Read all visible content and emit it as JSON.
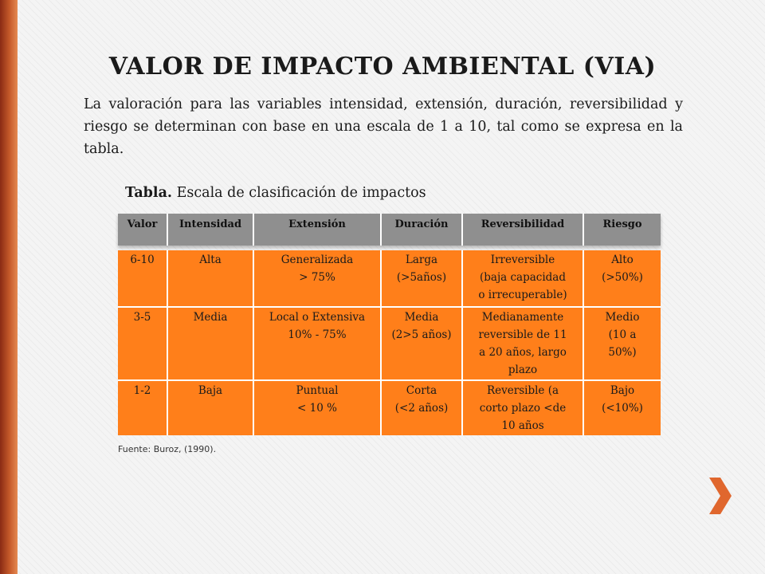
{
  "title": "VALOR DE IMPACTO AMBIENTAL (VIA)",
  "intro": "La valoración para las variables intensidad, extensión, duración, reversibilidad y riesgo se determinan con base en una escala de 1 a 10, tal como se expresa en la tabla.",
  "caption": {
    "bold": "Tabla.",
    "text": " Escala de clasificación de impactos"
  },
  "table": {
    "headers": [
      "Valor",
      "Intensidad",
      "Extensión",
      "Duración",
      "Reversibilidad",
      "Riesgo"
    ],
    "rows": [
      [
        "6-10",
        "Alta",
        "Generalizada\n> 75%",
        "Larga\n(>5años)",
        "Irreversible\n(baja capacidad\no irrecuperable)",
        "Alto\n(>50%)"
      ],
      [
        "3-5",
        "Media",
        "Local o Extensiva\n10% - 75%",
        "Media\n(2>5 años)",
        "Medianamente\nreversible de 11\na 20 años, largo\nplazo",
        "Medio\n(10 a\n50%)"
      ],
      [
        "1-2",
        "Baja",
        "Puntual\n< 10 %",
        "Corta\n(<2 años)",
        "Reversible (a\ncorto plazo <de\n10 años",
        "Bajo\n(<10%)"
      ]
    ]
  },
  "source": "Fuente: Buroz, (1990).",
  "colors": {
    "header_bg": "#8f8f8f",
    "row_bg": "#ff7f1a",
    "side_bar": "#b8481f",
    "arrow": "#e0672e"
  },
  "icons": {
    "next": "chevron-right-icon"
  }
}
